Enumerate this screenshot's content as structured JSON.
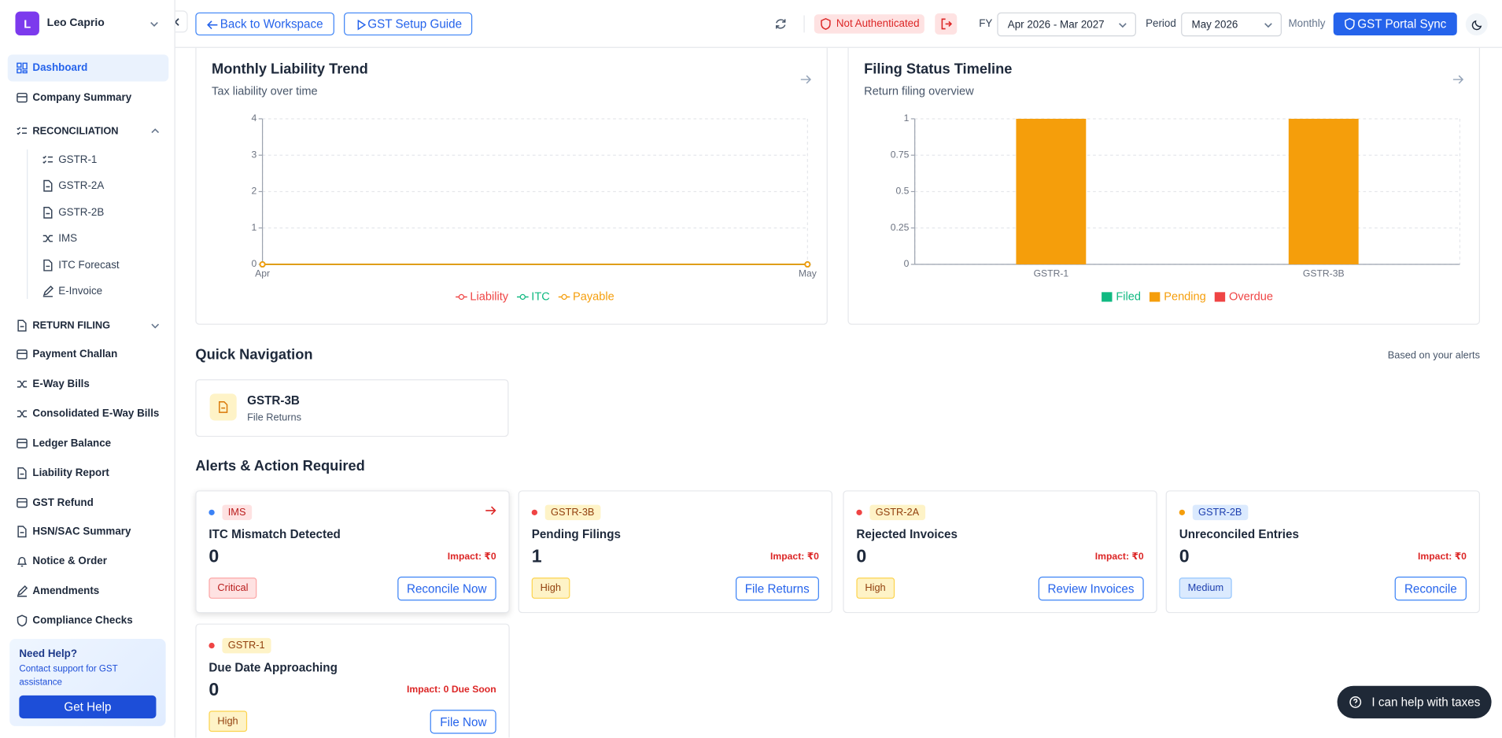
{
  "account": {
    "initial": "L",
    "name": "Leo Caprio"
  },
  "sidebar": {
    "items": [
      {
        "label": "Dashboard",
        "active": true
      },
      {
        "label": "Company Summary"
      },
      {
        "label": "RECONCILIATION",
        "section": true,
        "expanded": true
      },
      {
        "label": "GSTR-1",
        "sub": true
      },
      {
        "label": "GSTR-2A",
        "sub": true
      },
      {
        "label": "GSTR-2B",
        "sub": true
      },
      {
        "label": "IMS",
        "sub": true
      },
      {
        "label": "ITC Forecast",
        "sub": true
      },
      {
        "label": "E-Invoice",
        "sub": true
      },
      {
        "label": "RETURN FILING",
        "section": true,
        "expanded": false
      },
      {
        "label": "Payment Challan"
      },
      {
        "label": "E-Way Bills"
      },
      {
        "label": "Consolidated E-Way Bills"
      },
      {
        "label": "Ledger Balance"
      },
      {
        "label": "Liability Report"
      },
      {
        "label": "GST Refund"
      },
      {
        "label": "HSN/SAC Summary"
      },
      {
        "label": "Notice & Order"
      },
      {
        "label": "Amendments"
      },
      {
        "label": "Compliance Checks"
      }
    ],
    "help": {
      "title": "Need Help?",
      "text": "Contact support for GST assistance",
      "button": "Get Help"
    }
  },
  "toolbar": {
    "back": "Back to Workspace",
    "guide": "GST Setup Guide",
    "auth_status": "Not Authenticated",
    "fy_label": "FY",
    "fy_value": "Apr 2026 - Mar 2027",
    "period_label": "Period",
    "period_value": "May 2026",
    "frequency": "Monthly",
    "sync": "GST Portal Sync"
  },
  "chart_data": [
    {
      "type": "line",
      "title": "Monthly Liability Trend",
      "subtitle": "Tax liability over time",
      "categories": [
        "Apr",
        "May"
      ],
      "series": [
        {
          "name": "Liability",
          "color": "#ef4444",
          "values": [
            0,
            0
          ]
        },
        {
          "name": "ITC",
          "color": "#10b981",
          "values": [
            0,
            0
          ]
        },
        {
          "name": "Payable",
          "color": "#f59e0b",
          "values": [
            0,
            0
          ]
        }
      ],
      "ylim": [
        0,
        4
      ],
      "yticks": [
        0,
        1,
        2,
        3,
        4
      ],
      "grid": true
    },
    {
      "type": "bar",
      "stacked": true,
      "title": "Filing Status Timeline",
      "subtitle": "Return filing overview",
      "categories": [
        "GSTR-1",
        "GSTR-3B"
      ],
      "series": [
        {
          "name": "Filed",
          "color": "#10b981",
          "values": [
            0,
            0
          ]
        },
        {
          "name": "Pending",
          "color": "#f59e0b",
          "values": [
            1,
            1
          ]
        },
        {
          "name": "Overdue",
          "color": "#ef4444",
          "values": [
            0,
            0
          ]
        }
      ],
      "ylim": [
        0,
        1
      ],
      "yticks": [
        0,
        0.25,
        0.5,
        0.75,
        1
      ],
      "grid": true
    }
  ],
  "quick_navigation": {
    "title": "Quick Navigation",
    "note": "Based on your alerts",
    "cards": [
      {
        "title": "GSTR-3B",
        "subtitle": "File Returns"
      }
    ]
  },
  "alerts": {
    "title": "Alerts & Action Required",
    "cards": [
      {
        "tag": "IMS",
        "title": "ITC Mismatch Detected",
        "count": 0,
        "impact": "Impact: ₹0",
        "severity": "Critical",
        "action": "Reconcile Now",
        "dot_color": "#3b82f6",
        "arrow": true
      },
      {
        "tag": "GSTR-3B",
        "title": "Pending Filings",
        "count": 1,
        "impact": "Impact: ₹0",
        "severity": "High",
        "action": "File Returns",
        "dot_color": "#ef4444"
      },
      {
        "tag": "GSTR-2A",
        "title": "Rejected Invoices",
        "count": 0,
        "impact": "Impact: ₹0",
        "severity": "High",
        "action": "Review Invoices",
        "dot_color": "#ef4444"
      },
      {
        "tag": "GSTR-2B",
        "title": "Unreconciled Entries",
        "count": 0,
        "impact": "Impact: ₹0",
        "severity": "Medium",
        "action": "Reconcile",
        "dot_color": "#f59e0b"
      },
      {
        "tag": "GSTR-1",
        "title": "Due Date Approaching",
        "count": 0,
        "impact": "Impact: 0 Due Soon",
        "severity": "High",
        "action": "File Now",
        "dot_color": "#ef4444"
      }
    ]
  },
  "assistant": {
    "text": "I can help with taxes"
  }
}
